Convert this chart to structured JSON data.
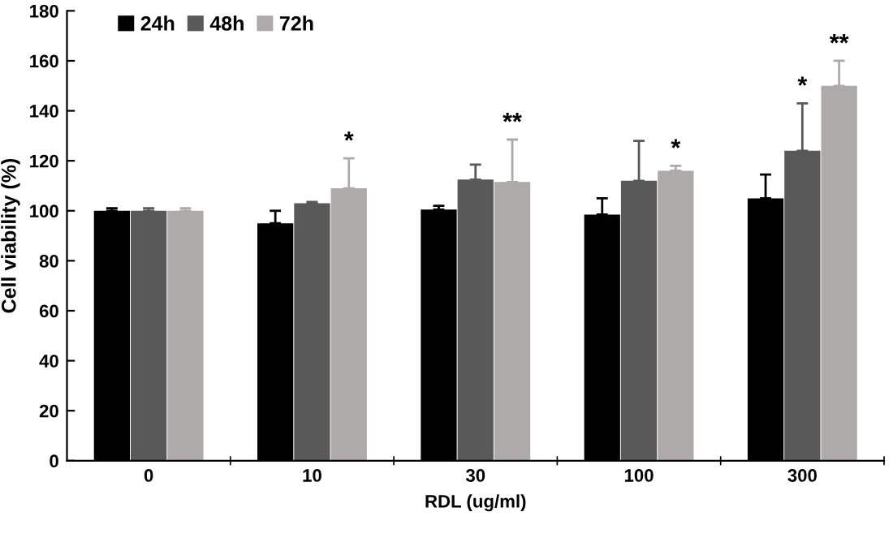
{
  "chart_data": {
    "type": "bar",
    "xlabel": "RDL (ug/ml)",
    "ylabel": "Cell viability (%)",
    "categories": [
      "0",
      "10",
      "30",
      "100",
      "300"
    ],
    "series": [
      {
        "name": "24h",
        "color": "#000000",
        "values": [
          100,
          95,
          100.5,
          98.5,
          105
        ],
        "errors": [
          1,
          5,
          1.5,
          6.5,
          9.5
        ]
      },
      {
        "name": "48h",
        "color": "#595959",
        "values": [
          100,
          103,
          112.5,
          112,
          124
        ],
        "errors": [
          1,
          0.5,
          6,
          16,
          19
        ],
        "value_labels": [
          null,
          null,
          null,
          null,
          "*"
        ]
      },
      {
        "name": "72h",
        "color": "#aeaaaa",
        "values": [
          100,
          109,
          111.5,
          116,
          150
        ],
        "errors": [
          1,
          12,
          17,
          2,
          10
        ],
        "value_labels": [
          null,
          "*",
          "**",
          "*",
          "**"
        ]
      }
    ],
    "ylim": [
      0,
      180
    ],
    "yticks": [
      0,
      20,
      40,
      60,
      80,
      100,
      120,
      140,
      160,
      180
    ],
    "grid": false,
    "legend": "top left"
  }
}
